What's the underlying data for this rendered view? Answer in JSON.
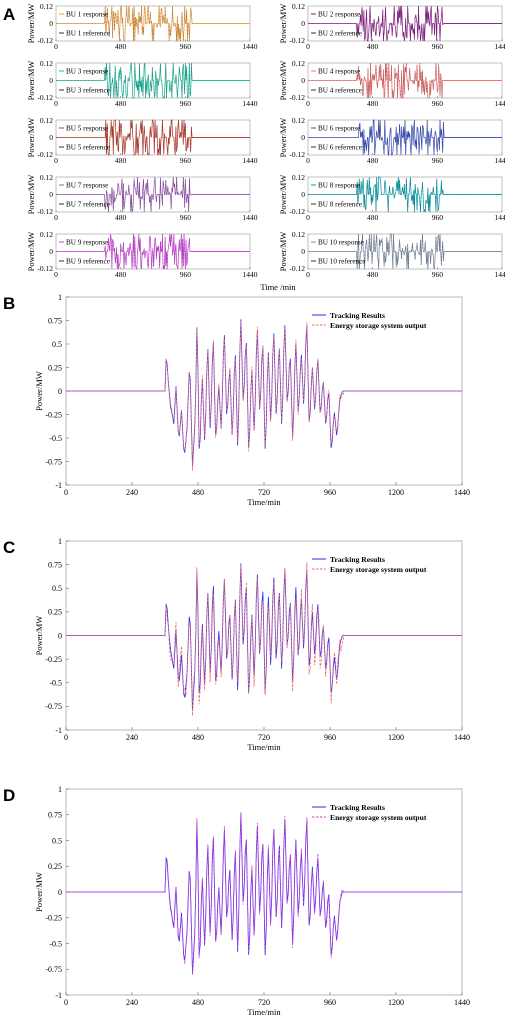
{
  "panel_letters": [
    "A",
    "B",
    "C",
    "D"
  ],
  "chart_data": [
    {
      "panel": "A",
      "type": "line",
      "layout": "5x2 grid of subplots",
      "ylabel": "Power/MW",
      "xlabel": "Time /min",
      "xlim": [
        0,
        1440
      ],
      "ylim": [
        -0.12,
        0.12
      ],
      "xticks": [
        "0",
        "480",
        "960",
        "1440"
      ],
      "yticks": [
        "0.12",
        "0",
        "-0.12"
      ],
      "active_window": [
        360,
        1010
      ],
      "subplots": [
        {
          "response": "BU 1 response",
          "reference": "BU 1 reference",
          "color": "#f0a040",
          "seed": 11
        },
        {
          "response": "BU 2 response",
          "reference": "BU 2 reference",
          "color": "#8b1a8b",
          "seed": 12
        },
        {
          "response": "BU 3 response",
          "reference": "BU 3 reference",
          "color": "#1abc9c",
          "seed": 13
        },
        {
          "response": "BU 4 response",
          "reference": "BU 4 reference",
          "color": "#f07070",
          "seed": 14
        },
        {
          "response": "BU 5 response",
          "reference": "BU 5 reference",
          "color": "#c0392b",
          "seed": 15
        },
        {
          "response": "BU 6 response",
          "reference": "BU 6 reference",
          "color": "#3b4fc4",
          "seed": 16
        },
        {
          "response": "BU 7 response",
          "reference": "BU 7 reference",
          "color": "#9b59b6",
          "seed": 17
        },
        {
          "response": "BU 8 response",
          "reference": "BU 8 reference",
          "color": "#00a0b0",
          "seed": 18
        },
        {
          "response": "BU 9 response",
          "reference": "BU 9 reference",
          "color": "#d13fe0",
          "seed": 19
        },
        {
          "response": "BU 10 response",
          "reference": "BU 10 reference",
          "color": "#7f8fa6",
          "seed": 20
        }
      ]
    },
    {
      "panel": "B",
      "type": "line",
      "xlabel": "Time/min",
      "ylabel": "Power/MW",
      "xlim": [
        0,
        1440
      ],
      "ylim": [
        -1,
        1
      ],
      "xticks": [
        "0",
        "240",
        "480",
        "720",
        "960",
        "1200",
        "1440"
      ],
      "yticks": [
        "1",
        "0.75",
        "0.5",
        "0.25",
        "0",
        "-0.25",
        "-0.5",
        "-0.75",
        "-1"
      ],
      "legend": "top-right",
      "series": [
        {
          "name": "Tracking Results",
          "color": "#2d2df0",
          "style": "solid"
        },
        {
          "name": "Energy storage system output",
          "color": "#f06a6a",
          "style": "dashed"
        }
      ],
      "profile": {
        "x": [
          0,
          360,
          365,
          372,
          380,
          392,
          400,
          410,
          420,
          430,
          440,
          450,
          460,
          470,
          477,
          485,
          495,
          505,
          515,
          525,
          535,
          545,
          555,
          565,
          575,
          585,
          595,
          605,
          615,
          625,
          635,
          645,
          655,
          665,
          675,
          685,
          695,
          705,
          715,
          725,
          735,
          745,
          755,
          765,
          775,
          785,
          795,
          805,
          815,
          825,
          835,
          845,
          855,
          865,
          875,
          885,
          895,
          905,
          915,
          925,
          935,
          945,
          955,
          965,
          975,
          985,
          995,
          1005,
          1015,
          1440
        ],
        "y": [
          0,
          0,
          0.42,
          0.1,
          -0.15,
          -0.35,
          0.05,
          -0.55,
          -0.2,
          -0.72,
          -0.4,
          0.35,
          -0.8,
          -0.3,
          0.84,
          -0.82,
          0.2,
          -0.6,
          0.55,
          -0.5,
          0.65,
          -0.6,
          0.1,
          -0.45,
          0.7,
          -0.35,
          0.3,
          -0.55,
          0.5,
          -0.7,
          0.87,
          -0.2,
          0.65,
          -0.75,
          0.3,
          -0.5,
          0.75,
          -0.3,
          0.6,
          -0.75,
          0.5,
          -0.4,
          0.72,
          -0.35,
          0.55,
          -0.45,
          0.8,
          -0.2,
          0.45,
          -0.6,
          0.6,
          -0.3,
          0.45,
          -0.2,
          0.82,
          -0.45,
          0.3,
          -0.25,
          0.4,
          -0.3,
          0.15,
          -0.4,
          0.05,
          -0.68,
          -0.2,
          -0.5,
          -0.1,
          0,
          0,
          0
        ]
      }
    },
    {
      "panel": "C",
      "type": "line",
      "xlabel": "Time/min",
      "ylabel": "Power/MW",
      "xlim": [
        0,
        1440
      ],
      "ylim": [
        -1,
        1
      ],
      "xticks": [
        "0",
        "240",
        "480",
        "720",
        "960",
        "1200",
        "1440"
      ],
      "yticks": [
        "1",
        "0.75",
        "0.5",
        "0.25",
        "0",
        "-0.25",
        "-0.5",
        "-0.75",
        "-1"
      ],
      "legend": "top-right",
      "series": [
        {
          "name": "Tracking Results",
          "color": "#2d2df0",
          "style": "solid"
        },
        {
          "name": "Energy storage system output",
          "color": "#f06a6a",
          "style": "dashed"
        }
      ]
    },
    {
      "panel": "D",
      "type": "line",
      "xlabel": "Time/min",
      "ylabel": "Power/MW",
      "xlim": [
        0,
        1440
      ],
      "ylim": [
        -1,
        1
      ],
      "xticks": [
        "0",
        "240",
        "480",
        "720",
        "960",
        "1200",
        "1440"
      ],
      "yticks": [
        "1",
        "0.75",
        "0.5",
        "0.25",
        "0",
        "-0.25",
        "-0.5",
        "-0.75",
        "-1"
      ],
      "legend": "top-right",
      "series": [
        {
          "name": "Tracking Results",
          "color": "#2d2df0",
          "style": "solid"
        },
        {
          "name": "Energy storage system output",
          "color": "#d23cd2",
          "style": "dashed"
        }
      ]
    }
  ]
}
